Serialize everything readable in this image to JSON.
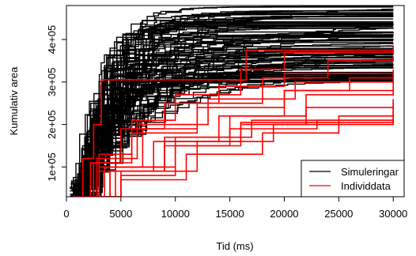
{
  "chart_data": {
    "type": "line",
    "title": "",
    "xlabel": "Tid (ms)",
    "ylabel": "Kumulativ area",
    "xlim": [
      0,
      31000
    ],
    "ylim": [
      30000,
      480000
    ],
    "x_ticks": [
      0,
      5000,
      10000,
      15000,
      20000,
      25000,
      30000
    ],
    "x_tick_labels": [
      "0",
      "5000",
      "10000",
      "15000",
      "20000",
      "25000",
      "30000"
    ],
    "y_ticks": [
      100000,
      200000,
      300000,
      400000
    ],
    "y_tick_labels": [
      "1e+05",
      "2e+05",
      "3e+05",
      "4e+05"
    ],
    "grid": false,
    "legend": {
      "position": "bottom-right",
      "entries": [
        {
          "label": "Simuleringar",
          "color": "#000000"
        },
        {
          "label": "Individdata",
          "color": "#ff0000"
        }
      ]
    },
    "series": [
      {
        "name": "Simuleringar",
        "color": "#000000",
        "count": 100,
        "x_end": 30000,
        "plateau_range": [
          300000,
          478000
        ],
        "start_range": [
          30000,
          70000
        ]
      },
      {
        "name": "Individdata",
        "color": "#ff0000",
        "curves": [
          {
            "x": [
              600,
              1500,
              2500,
              3200,
              8000,
              16000,
              16500,
              30000
            ],
            "y": [
              30000,
              120000,
              200000,
              305000,
              305000,
              305000,
              375000,
              375000
            ]
          },
          {
            "x": [
              800,
              3000,
              6000,
              10000,
              16000,
              20000,
              30000
            ],
            "y": [
              30000,
              130000,
              210000,
              270000,
              330000,
              370000,
              385000
            ]
          },
          {
            "x": [
              700,
              2500,
              6000,
              12000,
              18000,
              24000,
              30000
            ],
            "y": [
              30000,
              110000,
              180000,
              250000,
              310000,
              350000,
              360000
            ]
          },
          {
            "x": [
              900,
              3000,
              8000,
              14000,
              20000,
              26000,
              30000
            ],
            "y": [
              30000,
              90000,
              160000,
              220000,
              280000,
              310000,
              320000
            ]
          },
          {
            "x": [
              1000,
              4000,
              9000,
              15000,
              22000,
              30000
            ],
            "y": [
              30000,
              90000,
              170000,
              220000,
              270000,
              290000
            ]
          },
          {
            "x": [
              1100,
              5000,
              10000,
              16000,
              22000,
              30000
            ],
            "y": [
              30000,
              80000,
              150000,
              200000,
              240000,
              260000
            ]
          },
          {
            "x": [
              1200,
              5000,
              11000,
              18000,
              25000,
              30000
            ],
            "y": [
              30000,
              70000,
              130000,
              180000,
              220000,
              230000
            ]
          },
          {
            "x": [
              1000,
              3500,
              9000,
              15000,
              23000,
              30000
            ],
            "y": [
              30000,
              100000,
              150000,
              190000,
              210000,
              212000
            ]
          },
          {
            "x": [
              800,
              3000,
              7000,
              12000,
              20000,
              30000
            ],
            "y": [
              30000,
              100000,
              190000,
              240000,
              280000,
              300000
            ]
          },
          {
            "x": [
              900,
              2800,
              6500,
              13000,
              21000,
              30000
            ],
            "y": [
              30000,
              120000,
              200000,
              260000,
              300000,
              310000
            ]
          },
          {
            "x": [
              1300,
              5000,
              12000,
              19000,
              30000
            ],
            "y": [
              30000,
              90000,
              160000,
              200000,
              232000
            ]
          },
          {
            "x": [
              700,
              2200,
              5000,
              9000,
              14000,
              20000,
              30000
            ],
            "y": [
              30000,
              110000,
              190000,
              250000,
              290000,
              320000,
              330000
            ]
          },
          {
            "x": [
              1000,
              4500,
              10000,
              17000,
              30000
            ],
            "y": [
              30000,
              100000,
              170000,
              210000,
              245000
            ]
          },
          {
            "x": [
              1100,
              4000,
              9000,
              16000,
              30000
            ],
            "y": [
              30000,
              90000,
              160000,
              205000,
              252000
            ]
          }
        ]
      }
    ]
  }
}
